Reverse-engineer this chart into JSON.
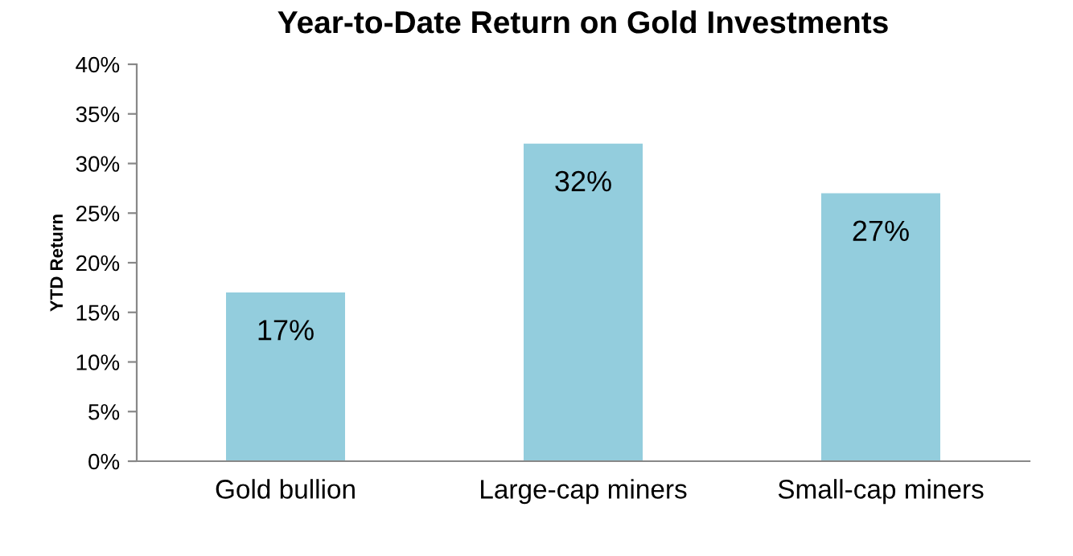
{
  "chart_data": {
    "type": "bar",
    "title": "Year-to-Date Return on Gold Investments",
    "ylabel": "YTD Return",
    "categories": [
      "Gold bullion",
      "Large-cap miners",
      "Small-cap miners"
    ],
    "values": [
      17,
      32,
      27
    ],
    "color": "#93cddd",
    "value_labels": [
      "17%",
      "32%",
      "27%"
    ],
    "ylim": [
      0,
      40
    ],
    "yticks": [
      {
        "value": 0,
        "label": "0%"
      },
      {
        "value": 5,
        "label": "5%"
      },
      {
        "value": 10,
        "label": "10%"
      },
      {
        "value": 15,
        "label": "15%"
      },
      {
        "value": 20,
        "label": "20%"
      },
      {
        "value": 25,
        "label": "25%"
      },
      {
        "value": 30,
        "label": "30%"
      },
      {
        "value": 35,
        "label": "35%"
      },
      {
        "value": 40,
        "label": "40%"
      }
    ],
    "grid": false,
    "legend": false
  }
}
